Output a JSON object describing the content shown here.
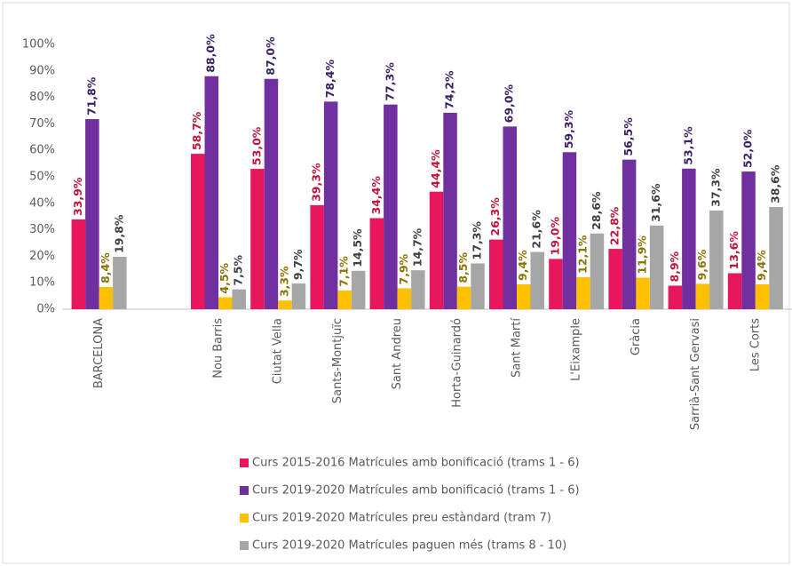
{
  "chart_data": {
    "type": "bar",
    "categories": [
      "BARCELONA",
      null,
      "Nou Barris",
      "Ciutat Vella",
      "Sants-Montjuïc",
      "Sant Andreu",
      "Horta-Guinardó",
      "Sant Martí",
      "L'Eixample",
      "Gràcia",
      "Sarrià-Sant Gervasi",
      "Les Corts"
    ],
    "series": [
      {
        "name": "Curs 2015-2016 Matrícules amb bonificació (trams 1 - 6)",
        "color": "#e8175d",
        "label_color": "#c0143c",
        "values": [
          33.9,
          null,
          58.7,
          53.0,
          39.3,
          34.4,
          44.4,
          26.3,
          19.0,
          22.8,
          8.9,
          13.6
        ],
        "value_labels": [
          "33,9%",
          null,
          "58,7%",
          "53,0%",
          "39,3%",
          "34,4%",
          "44,4%",
          "26,3%",
          "19,0%",
          "22,8%",
          "8,9%",
          "13,6%"
        ]
      },
      {
        "name": "Curs 2019-2020 Matrícules amb bonificació (trams 1 - 6)",
        "color": "#7030a0",
        "label_color": "#3b1f66",
        "values": [
          71.8,
          null,
          88.0,
          87.0,
          78.4,
          77.3,
          74.2,
          69.0,
          59.3,
          56.5,
          53.1,
          52.0
        ],
        "value_labels": [
          "71,8%",
          null,
          "88,0%",
          "87,0%",
          "78,4%",
          "77,3%",
          "74,2%",
          "69,0%",
          "59,3%",
          "56,5%",
          "53,1%",
          "52,0%"
        ]
      },
      {
        "name": "Curs 2019-2020 Matrícules preu estàndard (tram 7)",
        "color": "#ffc000",
        "label_color": "#8a7400",
        "values": [
          8.4,
          null,
          4.5,
          3.3,
          7.1,
          7.9,
          8.5,
          9.4,
          12.1,
          11.9,
          9.6,
          9.4
        ],
        "value_labels": [
          "8,4%",
          null,
          "4,5%",
          "3,3%",
          "7,1%",
          "7,9%",
          "8,5%",
          "9,4%",
          "12,1%",
          "11,9%",
          "9,6%",
          "9,4%"
        ]
      },
      {
        "name": "Curs 2019-2020 Matrícules paguen més (trams 8 - 10)",
        "color": "#a6a6a6",
        "label_color": "#404040",
        "values": [
          19.8,
          null,
          7.5,
          9.7,
          14.5,
          14.7,
          17.3,
          21.6,
          28.6,
          31.6,
          37.3,
          38.6
        ],
        "value_labels": [
          "19,8%",
          null,
          "7,5%",
          "9,7%",
          "14,5%",
          "14,7%",
          "17,3%",
          "21,6%",
          "28,6%",
          "31,6%",
          "37,3%",
          "38,6%"
        ]
      }
    ],
    "ylim": [
      0,
      100
    ],
    "yticks": [
      {
        "value": 0,
        "label": "0%"
      },
      {
        "value": 10,
        "label": "10%"
      },
      {
        "value": 20,
        "label": "20%"
      },
      {
        "value": 30,
        "label": "30%"
      },
      {
        "value": 40,
        "label": "40%"
      },
      {
        "value": 50,
        "label": "50%"
      },
      {
        "value": 60,
        "label": "60%"
      },
      {
        "value": 70,
        "label": "70%"
      },
      {
        "value": 80,
        "label": "80%"
      },
      {
        "value": 90,
        "label": "90%"
      },
      {
        "value": 100,
        "label": "100%"
      }
    ],
    "grid": false,
    "legend": "bottom"
  }
}
